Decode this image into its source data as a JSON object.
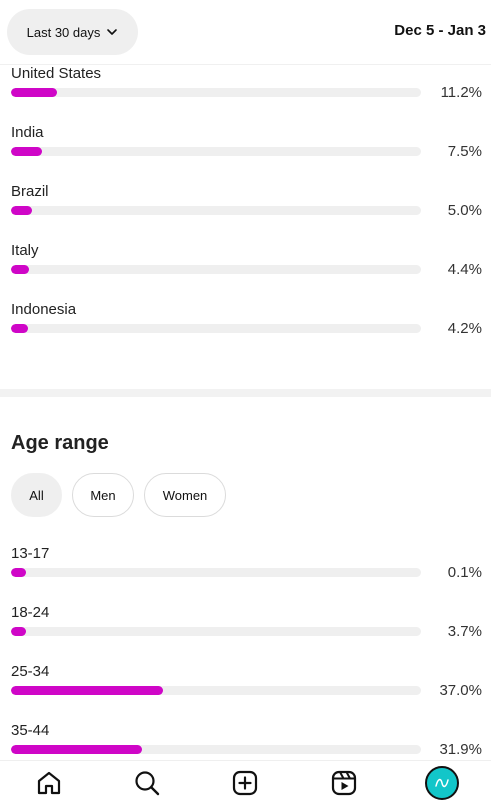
{
  "header": {
    "range_label": "Last 30 days",
    "date_range": "Dec 5 - Jan 3"
  },
  "countries": [
    {
      "label": "United States",
      "value": "11.2%",
      "fraction": 0.112
    },
    {
      "label": "India",
      "value": "7.5%",
      "fraction": 0.075
    },
    {
      "label": "Brazil",
      "value": "5.0%",
      "fraction": 0.05
    },
    {
      "label": "Italy",
      "value": "4.4%",
      "fraction": 0.044
    },
    {
      "label": "Indonesia",
      "value": "4.2%",
      "fraction": 0.042
    }
  ],
  "age_range": {
    "title": "Age range",
    "filters": [
      "All",
      "Men",
      "Women"
    ],
    "selected_filter": "All",
    "rows": [
      {
        "label": "13-17",
        "value": "0.1%",
        "fraction": 0.001
      },
      {
        "label": "18-24",
        "value": "3.7%",
        "fraction": 0.037
      },
      {
        "label": "25-34",
        "value": "37.0%",
        "fraction": 0.37
      },
      {
        "label": "35-44",
        "value": "31.9%",
        "fraction": 0.319
      }
    ]
  },
  "bottom_nav": {
    "items": [
      "home-icon",
      "search-icon",
      "create-icon",
      "reels-icon",
      "profile-avatar"
    ]
  },
  "colors": {
    "bar_fill": "#cf06c7",
    "bar_track": "#efefef",
    "avatar_bg": "#12c6c9"
  }
}
